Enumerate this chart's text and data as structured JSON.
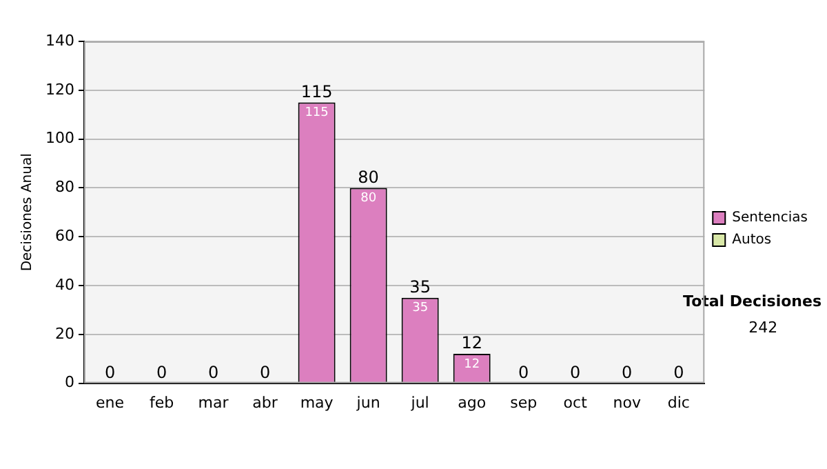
{
  "chart_data": {
    "type": "bar",
    "ylabel": "Decisiones Anual",
    "categories": [
      "ene",
      "feb",
      "mar",
      "abr",
      "may",
      "jun",
      "jul",
      "ago",
      "sep",
      "oct",
      "nov",
      "dic"
    ],
    "series": [
      {
        "name": "Sentencias",
        "color": "#dc7fbf",
        "values": [
          0,
          0,
          0,
          0,
          115,
          80,
          35,
          12,
          0,
          0,
          0,
          0
        ],
        "value_labels": [
          null,
          null,
          null,
          null,
          "115",
          "80",
          "35",
          "12",
          null,
          null,
          null,
          null
        ]
      },
      {
        "name": "Autos",
        "color": "#d9e8a8",
        "values": [
          0,
          0,
          0,
          0,
          0,
          0,
          0,
          0,
          0,
          0,
          0,
          0
        ]
      }
    ],
    "stacked": true,
    "totals": [
      "0",
      "0",
      "0",
      "0",
      "115",
      "80",
      "35",
      "12",
      "0",
      "0",
      "0",
      "0"
    ],
    "ylim": [
      0,
      140
    ],
    "yticks": [
      0,
      20,
      40,
      60,
      80,
      100,
      120,
      140
    ],
    "grid": "y",
    "legend": "right",
    "annotations": [
      "Total Decisiones",
      "242"
    ]
  }
}
